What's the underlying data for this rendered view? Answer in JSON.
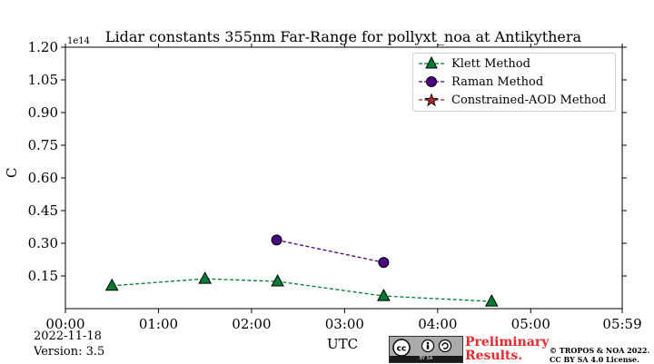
{
  "chart_data": {
    "type": "scatter",
    "title": "Lidar constants 355nm Far-Range for pollyxt_noa at Antikythera",
    "xlabel": "UTC",
    "ylabel": "C",
    "y_multiplier": "1e14",
    "x_ticks": [
      "00:00",
      "01:00",
      "02:00",
      "03:00",
      "04:00",
      "05:00",
      "05:59"
    ],
    "y_ticks": [
      "0.15",
      "0.30",
      "0.45",
      "0.60",
      "0.75",
      "0.90",
      "1.05",
      "1.20"
    ],
    "xlim_hours": [
      0,
      5.983
    ],
    "ylim": [
      0.0,
      1.2
    ],
    "legend_position": "top-right",
    "series": [
      {
        "name": "Klett Method",
        "marker": "triangle",
        "color": "#007b35",
        "line": "dashed",
        "x": [
          0.5,
          1.5,
          2.28,
          3.42,
          4.58
        ],
        "y": [
          0.105,
          0.137,
          0.125,
          0.058,
          0.033
        ]
      },
      {
        "name": "Raman Method",
        "marker": "circle",
        "color": "#4b0080",
        "line": "dashed",
        "x": [
          2.27,
          3.42
        ],
        "y": [
          0.315,
          0.212
        ]
      },
      {
        "name": "Constrained-AOD Method",
        "marker": "star",
        "color": "#a52a2a",
        "line": "dashed",
        "x": [],
        "y": []
      }
    ]
  },
  "footer": {
    "date": "2022-11-18",
    "version": "Version: 3.5",
    "preliminary_line1": "Preliminary",
    "preliminary_line2": "Results.",
    "copyright_line1": "© TROPOS & NOA 2022.",
    "copyright_line2": "CC BY SA 4.0 License.",
    "cc_badge_text": "BY    SA"
  },
  "colors": {
    "klett": "#007b35",
    "raman": "#4b0080",
    "constrained": "#a52a2a",
    "preliminary": "#e8292e"
  }
}
